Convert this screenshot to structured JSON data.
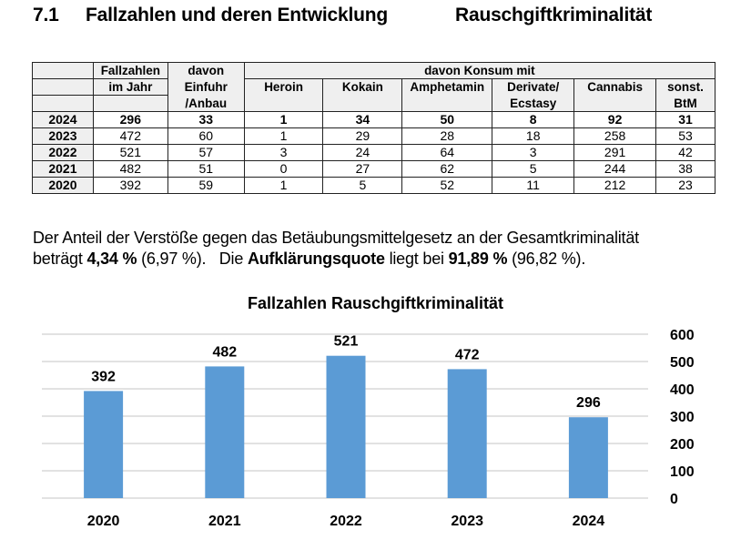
{
  "heading": {
    "number": "7.1",
    "title": "Fallzahlen und deren Entwicklung",
    "subtitle": "Rauschgiftkriminalität"
  },
  "table": {
    "header": {
      "fallzahlen_line1": "Fallzahlen",
      "fallzahlen_line2": "im Jahr",
      "einfuhr_line1": "davon",
      "einfuhr_line2": "Einfuhr",
      "einfuhr_line3": "/Anbau",
      "konsum_group": "davon Konsum mit",
      "heroin": "Heroin",
      "kokain": "Kokain",
      "amphetamin": "Amphetamin",
      "derivate_line1": "Derivate/",
      "derivate_line2": "Ecstasy",
      "cannabis": "Cannabis",
      "sonst_line1": "sonst.",
      "sonst_line2": "BtM"
    },
    "rows": [
      {
        "year": "2024",
        "values": [
          "296",
          "33",
          "1",
          "34",
          "50",
          "8",
          "92",
          "31"
        ]
      },
      {
        "year": "2023",
        "values": [
          "472",
          "60",
          "1",
          "29",
          "28",
          "18",
          "258",
          "53"
        ]
      },
      {
        "year": "2022",
        "values": [
          "521",
          "57",
          "3",
          "24",
          "64",
          "3",
          "291",
          "42"
        ]
      },
      {
        "year": "2021",
        "values": [
          "482",
          "51",
          "0",
          "27",
          "62",
          "5",
          "244",
          "38"
        ]
      },
      {
        "year": "2020",
        "values": [
          "392",
          "59",
          "1",
          "5",
          "52",
          "11",
          "212",
          "23"
        ]
      }
    ]
  },
  "paragraph": {
    "line1": "Der Anteil der Verstöße gegen das Betäubungsmittelgesetz an der Gesamtkriminalität",
    "p1": "beträgt ",
    "b1": "4,34 %",
    "p2": " (6,97 %).   Die ",
    "b2": "Aufklärungsquote",
    "p3": " liegt bei ",
    "b3": "91,89 %",
    "p4": " (96,82 %)."
  },
  "colors": {
    "bar": "#5b9bd5",
    "grid": "#d9d9d9",
    "header_bg": "#efefef"
  },
  "chart_data": {
    "type": "bar",
    "title": "Fallzahlen Rauschgiftkriminalität",
    "categories": [
      "2020",
      "2021",
      "2022",
      "2023",
      "2024"
    ],
    "values": [
      392,
      482,
      521,
      472,
      296
    ],
    "data_labels": [
      "392",
      "482",
      "521",
      "472",
      "296"
    ],
    "xlabel": "",
    "ylabel": "",
    "ylim": [
      0,
      600
    ],
    "yticks": [
      0,
      100,
      200,
      300,
      400,
      500,
      600
    ],
    "y_axis_side": "right",
    "grid": true,
    "legend": "none"
  }
}
